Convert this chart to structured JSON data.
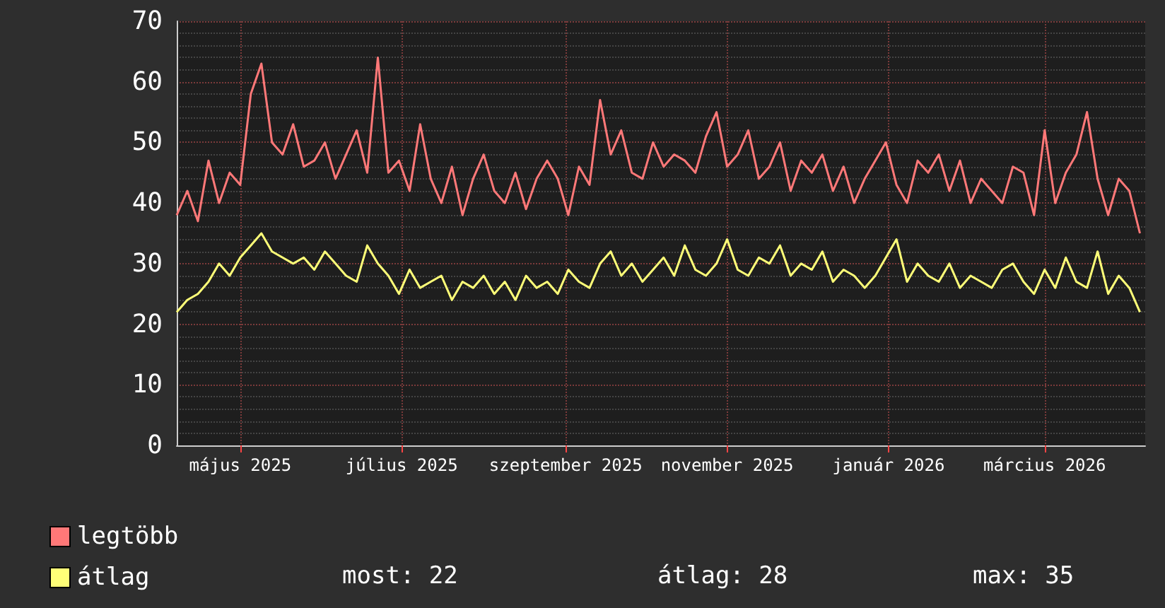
{
  "chart_data": {
    "type": "line",
    "x": [
      "2025-04-07",
      "2025-04-11",
      "2025-04-15",
      "2025-04-19",
      "2025-04-23",
      "2025-04-27",
      "2025-05-01",
      "2025-05-05",
      "2025-05-09",
      "2025-05-13",
      "2025-05-17",
      "2025-05-21",
      "2025-05-25",
      "2025-05-29",
      "2025-06-02",
      "2025-06-06",
      "2025-06-10",
      "2025-06-14",
      "2025-06-18",
      "2025-06-22",
      "2025-06-26",
      "2025-06-30",
      "2025-07-04",
      "2025-07-08",
      "2025-07-12",
      "2025-07-16",
      "2025-07-20",
      "2025-07-24",
      "2025-07-28",
      "2025-08-01",
      "2025-08-05",
      "2025-08-09",
      "2025-08-13",
      "2025-08-17",
      "2025-08-21",
      "2025-08-25",
      "2025-08-29",
      "2025-09-02",
      "2025-09-06",
      "2025-09-10",
      "2025-09-14",
      "2025-09-18",
      "2025-09-22",
      "2025-09-26",
      "2025-09-30",
      "2025-10-04",
      "2025-10-08",
      "2025-10-12",
      "2025-10-16",
      "2025-10-20",
      "2025-10-24",
      "2025-10-28",
      "2025-11-01",
      "2025-11-05",
      "2025-11-09",
      "2025-11-13",
      "2025-11-17",
      "2025-11-21",
      "2025-11-25",
      "2025-11-29",
      "2025-12-03",
      "2025-12-07",
      "2025-12-11",
      "2025-12-15",
      "2025-12-19",
      "2025-12-23",
      "2025-12-27",
      "2025-12-31",
      "2026-01-04",
      "2026-01-08",
      "2026-01-12",
      "2026-01-16",
      "2026-01-20",
      "2026-01-24",
      "2026-01-28",
      "2026-02-01",
      "2026-02-05",
      "2026-02-09",
      "2026-02-13",
      "2026-02-17",
      "2026-02-21",
      "2026-02-25",
      "2026-03-01",
      "2026-03-05",
      "2026-03-09",
      "2026-03-13",
      "2026-03-17",
      "2026-03-21",
      "2026-03-25",
      "2026-03-29",
      "2026-04-02",
      "2026-04-06"
    ],
    "series": [
      {
        "name": "legtöbb",
        "color": "#ff7878",
        "values": [
          38,
          42,
          37,
          47,
          40,
          45,
          43,
          58,
          63,
          50,
          48,
          53,
          46,
          47,
          50,
          44,
          48,
          52,
          45,
          64,
          45,
          47,
          42,
          53,
          44,
          40,
          46,
          38,
          44,
          48,
          42,
          40,
          45,
          39,
          44,
          47,
          44,
          38,
          46,
          43,
          57,
          48,
          52,
          45,
          44,
          50,
          46,
          48,
          47,
          45,
          51,
          55,
          46,
          48,
          52,
          44,
          46,
          50,
          42,
          47,
          45,
          48,
          42,
          46,
          40,
          44,
          47,
          50,
          43,
          40,
          47,
          45,
          48,
          42,
          47,
          40,
          44,
          42,
          40,
          46,
          45,
          38,
          52,
          40,
          45,
          48,
          55,
          44,
          38,
          44,
          42,
          35
        ]
      },
      {
        "name": "átlag",
        "color": "#ffff78",
        "values": [
          22,
          24,
          25,
          27,
          30,
          28,
          31,
          33,
          35,
          32,
          31,
          30,
          31,
          29,
          32,
          30,
          28,
          27,
          33,
          30,
          28,
          25,
          29,
          26,
          27,
          28,
          24,
          27,
          26,
          28,
          25,
          27,
          24,
          28,
          26,
          27,
          25,
          29,
          27,
          26,
          30,
          32,
          28,
          30,
          27,
          29,
          31,
          28,
          33,
          29,
          28,
          30,
          34,
          29,
          28,
          31,
          30,
          33,
          28,
          30,
          29,
          32,
          27,
          29,
          28,
          26,
          28,
          31,
          34,
          27,
          30,
          28,
          27,
          30,
          26,
          28,
          27,
          26,
          29,
          30,
          27,
          25,
          29,
          26,
          31,
          27,
          26,
          32,
          25,
          28,
          26,
          22
        ]
      }
    ],
    "xlim": [
      "2025-04-07",
      "2026-04-08"
    ],
    "xticks": [
      {
        "value": "2025-05-01",
        "label": "május 2025"
      },
      {
        "value": "2025-07-01",
        "label": "július 2025"
      },
      {
        "value": "2025-09-01",
        "label": "szeptember 2025"
      },
      {
        "value": "2025-11-01",
        "label": "november 2025"
      },
      {
        "value": "2026-01-01",
        "label": "január 2026"
      },
      {
        "value": "2026-03-01",
        "label": "március 2026"
      }
    ],
    "ylim": [
      0,
      70
    ],
    "yticks": [
      0,
      10,
      20,
      30,
      40,
      50,
      60,
      70
    ],
    "grid": true,
    "legend": "bottom left",
    "marker": "none",
    "line_style": "solid",
    "annotations": [
      "most: 22",
      "átlag: 28",
      "max: 35"
    ]
  }
}
